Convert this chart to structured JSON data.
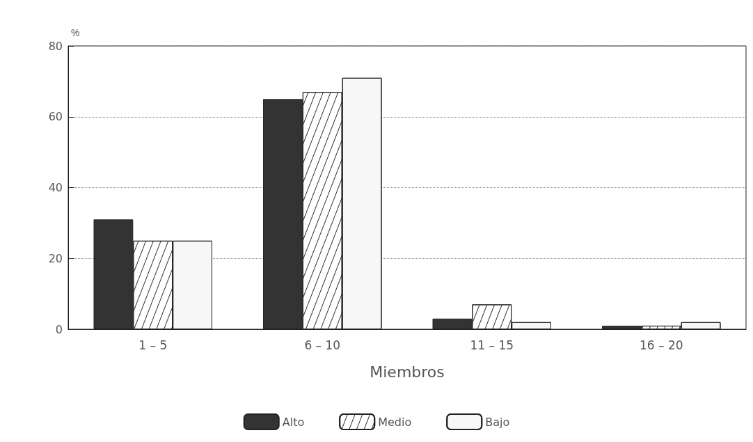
{
  "chart_data": {
    "type": "bar",
    "ylabel": "%",
    "xlabel": "Miembros",
    "categories": [
      "1 – 5",
      "6 – 10",
      "11 – 15",
      "16 – 20"
    ],
    "series": [
      {
        "name": "Alto",
        "color": "#333333",
        "values": [
          31,
          65,
          3,
          1
        ]
      },
      {
        "name": "Medio",
        "color": "#ffffff",
        "values": [
          25,
          67,
          7,
          1
        ]
      },
      {
        "name": "Bajo",
        "color": "#f7f7f7",
        "values": [
          25,
          71,
          2,
          2
        ]
      }
    ],
    "ylim": [
      0,
      80
    ],
    "yticks": [
      0,
      20,
      40,
      60,
      80
    ],
    "grid": "y",
    "legend": "bottom"
  }
}
